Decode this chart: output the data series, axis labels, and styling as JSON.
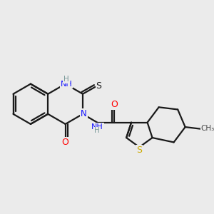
{
  "bg": "#ebebeb",
  "bond_color": "#1a1a1a",
  "lw": 1.6,
  "atom_colors": {
    "N": "#1414ff",
    "O": "#ff0000",
    "S_thione": "#1a1a1a",
    "S_thiophene": "#ccaa00",
    "H_color": "#7a9a9a",
    "CH3_color": "#444444"
  },
  "xlim": [
    -4.2,
    5.8
  ],
  "ylim": [
    -3.2,
    3.2
  ]
}
